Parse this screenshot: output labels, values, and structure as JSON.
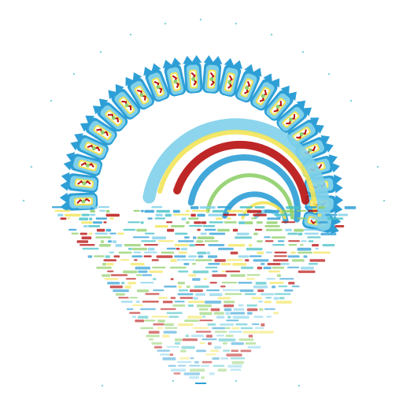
{
  "image": {
    "subject": "fractal-spiral-with-water-reflection",
    "background": "#ffffff",
    "palette": {
      "blue": "#2e9fd6",
      "light_blue": "#7fd0ea",
      "cyan": "#48c2c8",
      "green": "#8fcf6a",
      "yellow": "#f2e45a",
      "red": "#b8100f",
      "dark_red": "#8a0a0a"
    }
  }
}
